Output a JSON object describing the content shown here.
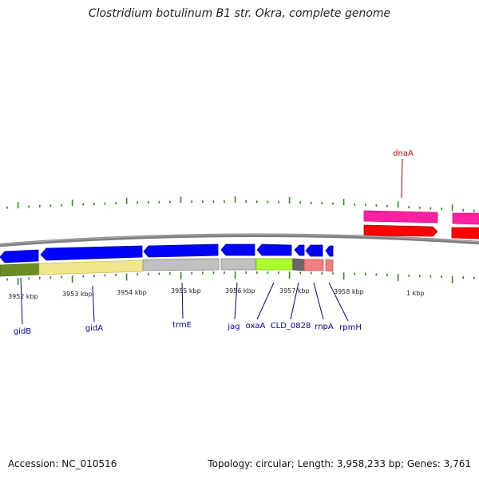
{
  "title": "Clostridium botulinum B1 str. Okra, complete genome",
  "footer": {
    "accession": "Accession: NC_010516",
    "summary": "Topology: circular; Length: 3,958,233 bp; Genes: 3,761"
  },
  "colors": {
    "forward_gene": "#ff1fa0",
    "forward_cds": "#ff0000",
    "reverse_gene": "#0000ff",
    "forward_label": "#cc0000",
    "reverse_label": "#0000aa",
    "backbone": "#808080",
    "tick": "#2e8b1e"
  },
  "scale_labels": [
    "3952 kbp",
    "3953 kbp",
    "3954 kbp",
    "3955 kbp",
    "3956 kbp",
    "3957 kbp",
    "3958 kbp",
    "1 kbp"
  ],
  "forward_genes": [
    {
      "name": "dnaA"
    }
  ],
  "reverse_genes": [
    {
      "name": "gidB"
    },
    {
      "name": "gidA"
    },
    {
      "name": "trmE"
    },
    {
      "name": "jag"
    },
    {
      "name": "oxaA"
    },
    {
      "name": "CLD_0828"
    },
    {
      "name": "rnpA"
    },
    {
      "name": "rpmH"
    }
  ]
}
